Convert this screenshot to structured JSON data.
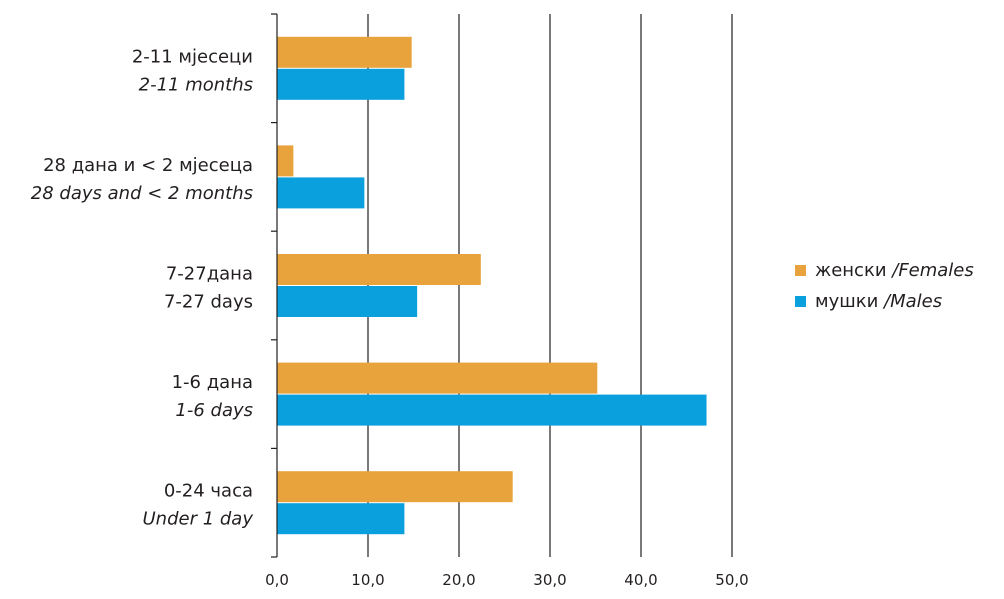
{
  "chart_data": {
    "type": "bar",
    "orientation": "horizontal",
    "categories": [
      {
        "line1": "2-11 мјесеци",
        "line2": "2-11 months",
        "line2_italic": true
      },
      {
        "line1": "28 дана и < 2 мјесеца",
        "line2": "28 days and < 2 months",
        "line2_italic": true
      },
      {
        "line1": "7-27дана",
        "line2": "7-27 days",
        "line2_italic": false
      },
      {
        "line1": "1-6 дана",
        "line2": "1-6 days",
        "line2_italic": true
      },
      {
        "line1": "0-24 часа",
        "line2": "Under 1 day",
        "line2_italic": true
      }
    ],
    "series": [
      {
        "name_local": "женски",
        "name_en": "/Females",
        "color": "#e8a33d",
        "values": [
          14.8,
          1.8,
          22.4,
          35.2,
          25.9
        ]
      },
      {
        "name_local": "мушки",
        "name_en": "/Males",
        "color": "#0a9fdd",
        "values": [
          14.0,
          9.6,
          15.4,
          47.2,
          14.0
        ]
      }
    ],
    "xlim": [
      0,
      50
    ],
    "xticks": [
      0,
      10,
      20,
      30,
      40,
      50
    ],
    "xtick_labels": [
      "0,0",
      "10,0",
      "20,0",
      "30,0",
      "40,0",
      "50,0"
    ],
    "grid": "vertical",
    "legend_position": "right"
  }
}
